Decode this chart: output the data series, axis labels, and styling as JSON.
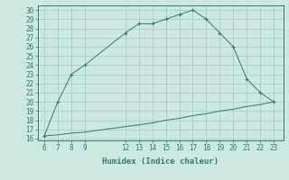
{
  "title": "",
  "xlabel": "Humidex (Indice chaleur)",
  "x_data": [
    6,
    7,
    8,
    9,
    12,
    13,
    14,
    15,
    16,
    17,
    18,
    19,
    20,
    21,
    22,
    23
  ],
  "y_main": [
    16.3,
    20,
    23,
    24,
    27.5,
    28.5,
    28.5,
    29,
    29.5,
    30,
    29,
    27.5,
    26,
    22.5,
    21,
    20
  ],
  "y_base": [
    16.3,
    16.4,
    16.6,
    16.7,
    17.3,
    17.5,
    17.7,
    18.0,
    18.2,
    18.5,
    18.7,
    19.0,
    19.2,
    19.5,
    19.7,
    20.0
  ],
  "line_color": "#2e7d6e",
  "bg_color": "#cce8e0",
  "grid_color": "#9ecec4",
  "xlim": [
    5.5,
    23.7
  ],
  "ylim": [
    15.8,
    30.5
  ],
  "xticks": [
    6,
    7,
    8,
    9,
    12,
    13,
    14,
    15,
    16,
    17,
    18,
    19,
    20,
    21,
    22,
    23
  ],
  "yticks": [
    16,
    17,
    18,
    19,
    20,
    21,
    22,
    23,
    24,
    25,
    26,
    27,
    28,
    29,
    30
  ],
  "tick_fontsize": 5.5,
  "xlabel_fontsize": 6.5
}
